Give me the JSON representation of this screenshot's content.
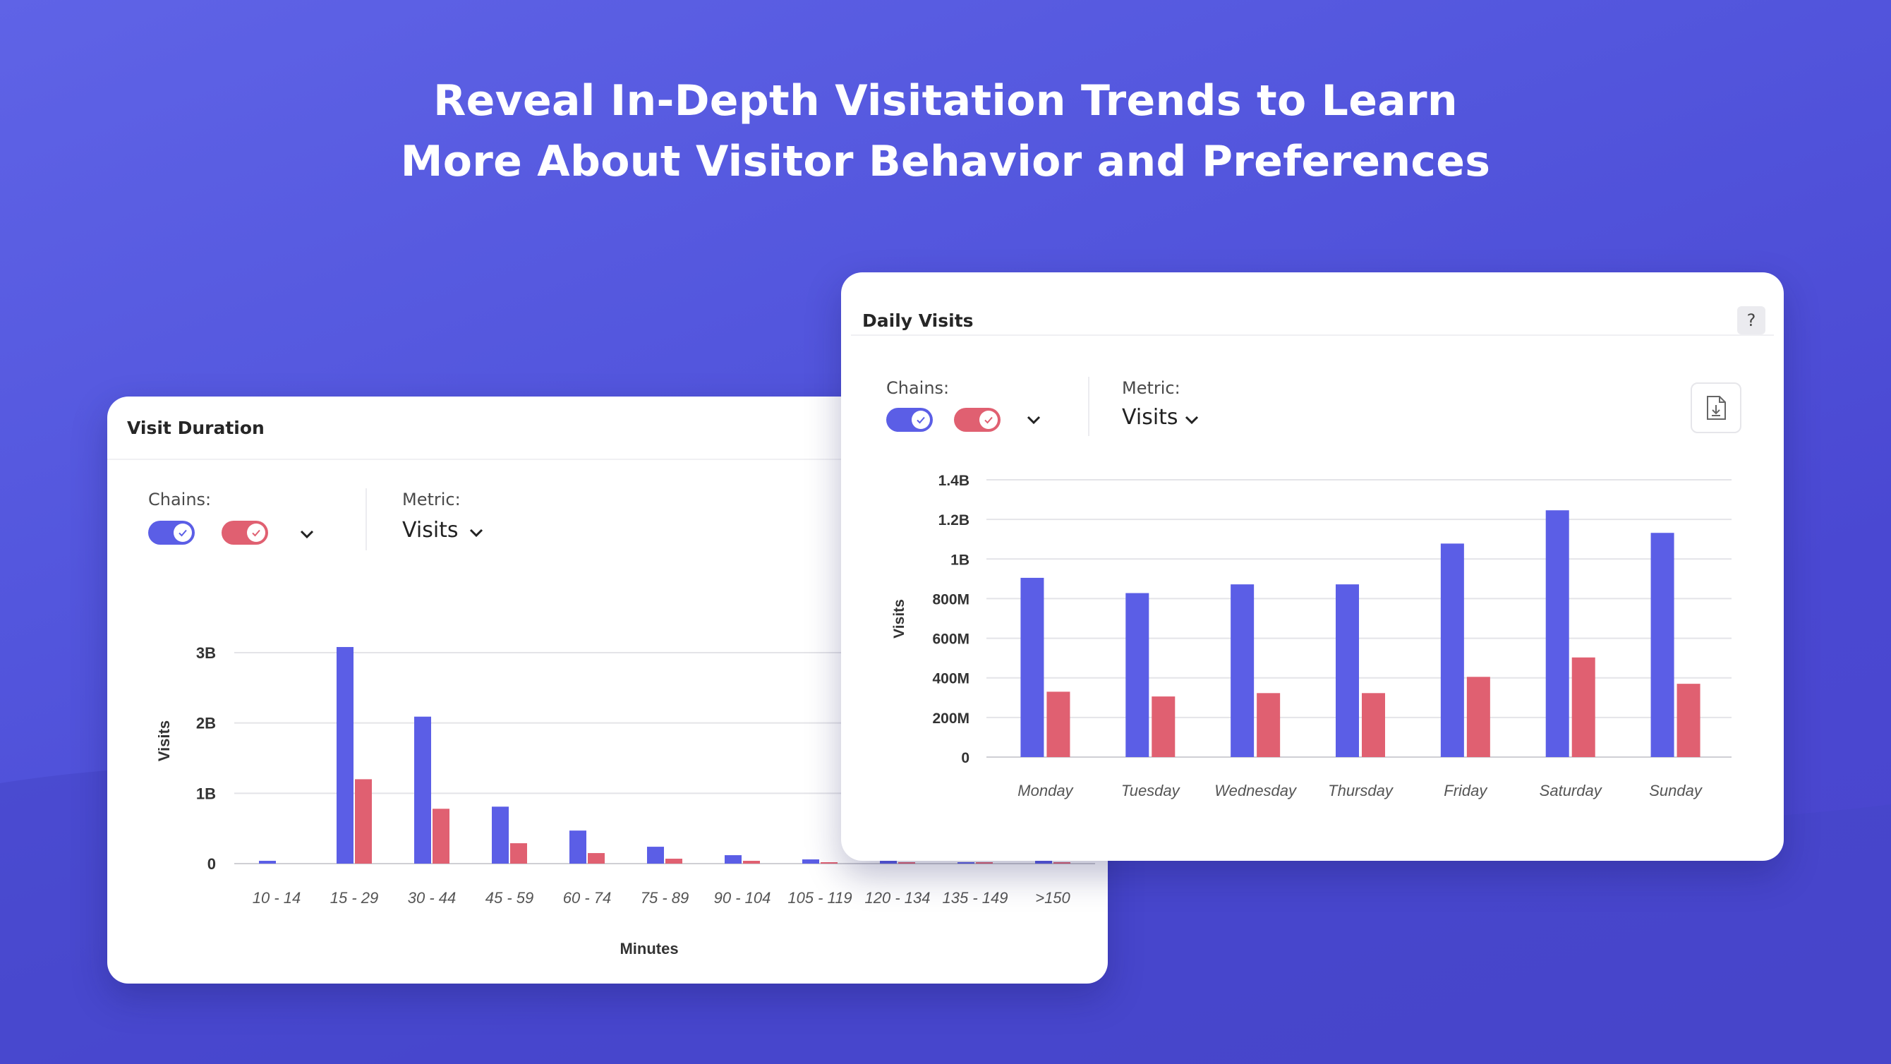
{
  "headline": {
    "line1": "Reveal In-Depth Visitation Trends to Learn",
    "line2": "More About Visitor Behavior and Preferences"
  },
  "colors": {
    "series_blue": "#5b5ee6",
    "series_red": "#e06071",
    "background": "#5356dd"
  },
  "visit_duration_card": {
    "title": "Visit Duration",
    "chains_label": "Chains:",
    "metric_label": "Metric:",
    "metric_value": "Visits",
    "toggles": [
      {
        "color": "#5b5ee6",
        "state": "on"
      },
      {
        "color": "#e06071",
        "state": "on"
      }
    ],
    "icons": {
      "chains_dropdown": "chevron-down-icon",
      "metric_dropdown": "chevron-down-icon",
      "toggle_check": "check-icon"
    }
  },
  "daily_visits_card": {
    "title": "Daily Visits",
    "help_label": "?",
    "chains_label": "Chains:",
    "metric_label": "Metric:",
    "metric_value": "Visits",
    "toggles": [
      {
        "color": "#5b5ee6",
        "state": "on"
      },
      {
        "color": "#e06071",
        "state": "on"
      }
    ],
    "icons": {
      "chains_dropdown": "chevron-down-icon",
      "metric_dropdown": "chevron-down-icon",
      "download": "download-file-icon",
      "toggle_check": "check-icon"
    }
  },
  "chart_data": [
    {
      "type": "bar",
      "title": "Visit Duration",
      "xlabel": "Minutes",
      "ylabel": "Visits",
      "ylim": [
        0,
        3000000000
      ],
      "yticks": [
        {
          "value": 0,
          "label": "0"
        },
        {
          "value": 1000000000,
          "label": "1B"
        },
        {
          "value": 2000000000,
          "label": "2B"
        },
        {
          "value": 3000000000,
          "label": "3B"
        }
      ],
      "categories": [
        "10 - 14",
        "15 - 29",
        "30 - 44",
        "45 - 59",
        "60 - 74",
        "75 - 89",
        "90 - 104",
        "105 - 119",
        "120 - 134",
        "135 - 149",
        ">150"
      ],
      "series": [
        {
          "color": "#5b5ee6",
          "values": [
            40000000,
            3080000000,
            2090000000,
            810000000,
            470000000,
            240000000,
            120000000,
            60000000,
            40000000,
            20000000,
            40000000
          ]
        },
        {
          "color": "#e06071",
          "values": [
            0,
            1200000000,
            780000000,
            290000000,
            150000000,
            70000000,
            40000000,
            20000000,
            10000000,
            10000000,
            20000000
          ]
        }
      ],
      "grid": true,
      "legend": "none"
    },
    {
      "type": "bar",
      "title": "Daily Visits",
      "xlabel": "",
      "ylabel": "Visits",
      "ylim": [
        0,
        1400000000
      ],
      "yticks": [
        {
          "value": 0,
          "label": "0"
        },
        {
          "value": 200000000,
          "label": "200M"
        },
        {
          "value": 400000000,
          "label": "400M"
        },
        {
          "value": 600000000,
          "label": "600M"
        },
        {
          "value": 800000000,
          "label": "800M"
        },
        {
          "value": 1000000000,
          "label": "1B"
        },
        {
          "value": 1200000000,
          "label": "1.2B"
        },
        {
          "value": 1400000000,
          "label": "1.4B"
        }
      ],
      "categories": [
        "Monday",
        "Tuesday",
        "Wednesday",
        "Thursday",
        "Friday",
        "Saturday",
        "Sunday"
      ],
      "series": [
        {
          "color": "#5b5ee6",
          "values": [
            905000000,
            828000000,
            872000000,
            872000000,
            1078000000,
            1246000000,
            1132000000
          ]
        },
        {
          "color": "#e06071",
          "values": [
            330000000,
            306000000,
            323000000,
            323000000,
            405000000,
            503000000,
            370000000
          ]
        }
      ],
      "grid": true,
      "legend": "none"
    }
  ]
}
